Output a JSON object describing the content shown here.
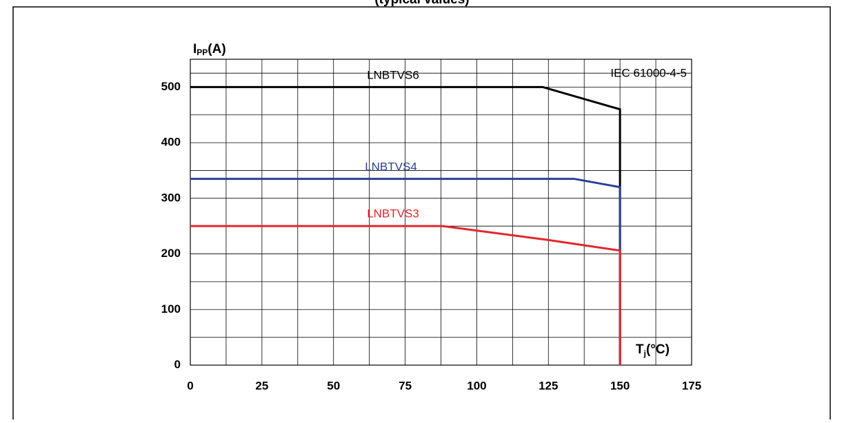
{
  "chart_data": {
    "type": "line",
    "title": "(typical values)",
    "ylabel": {
      "main": "I",
      "sub": "PP",
      "rest": "(A)"
    },
    "xlabel": {
      "main": "T",
      "sub": "j",
      "rest": "(°C)"
    },
    "annotation": "IEC 61000-4-5",
    "xlim": [
      0,
      175
    ],
    "xticks": [
      0,
      25,
      50,
      75,
      100,
      125,
      150,
      175
    ],
    "ylim": [
      0,
      550
    ],
    "yticks": [
      0,
      100,
      200,
      300,
      400,
      500
    ],
    "grid": true,
    "series": [
      {
        "name": "LNBTVS6",
        "color": "#000000",
        "x": [
          0,
          123,
          150,
          150
        ],
        "values": [
          500,
          500,
          460,
          0
        ]
      },
      {
        "name": "LNBTVS4",
        "color": "#2b3f97",
        "x": [
          0,
          134,
          150,
          150
        ],
        "values": [
          335,
          335,
          320,
          0
        ]
      },
      {
        "name": "LNBTVS3",
        "color": "#e3252c",
        "x": [
          0,
          88,
          125,
          150,
          150
        ],
        "values": [
          250,
          250,
          225,
          206,
          0
        ]
      }
    ]
  }
}
